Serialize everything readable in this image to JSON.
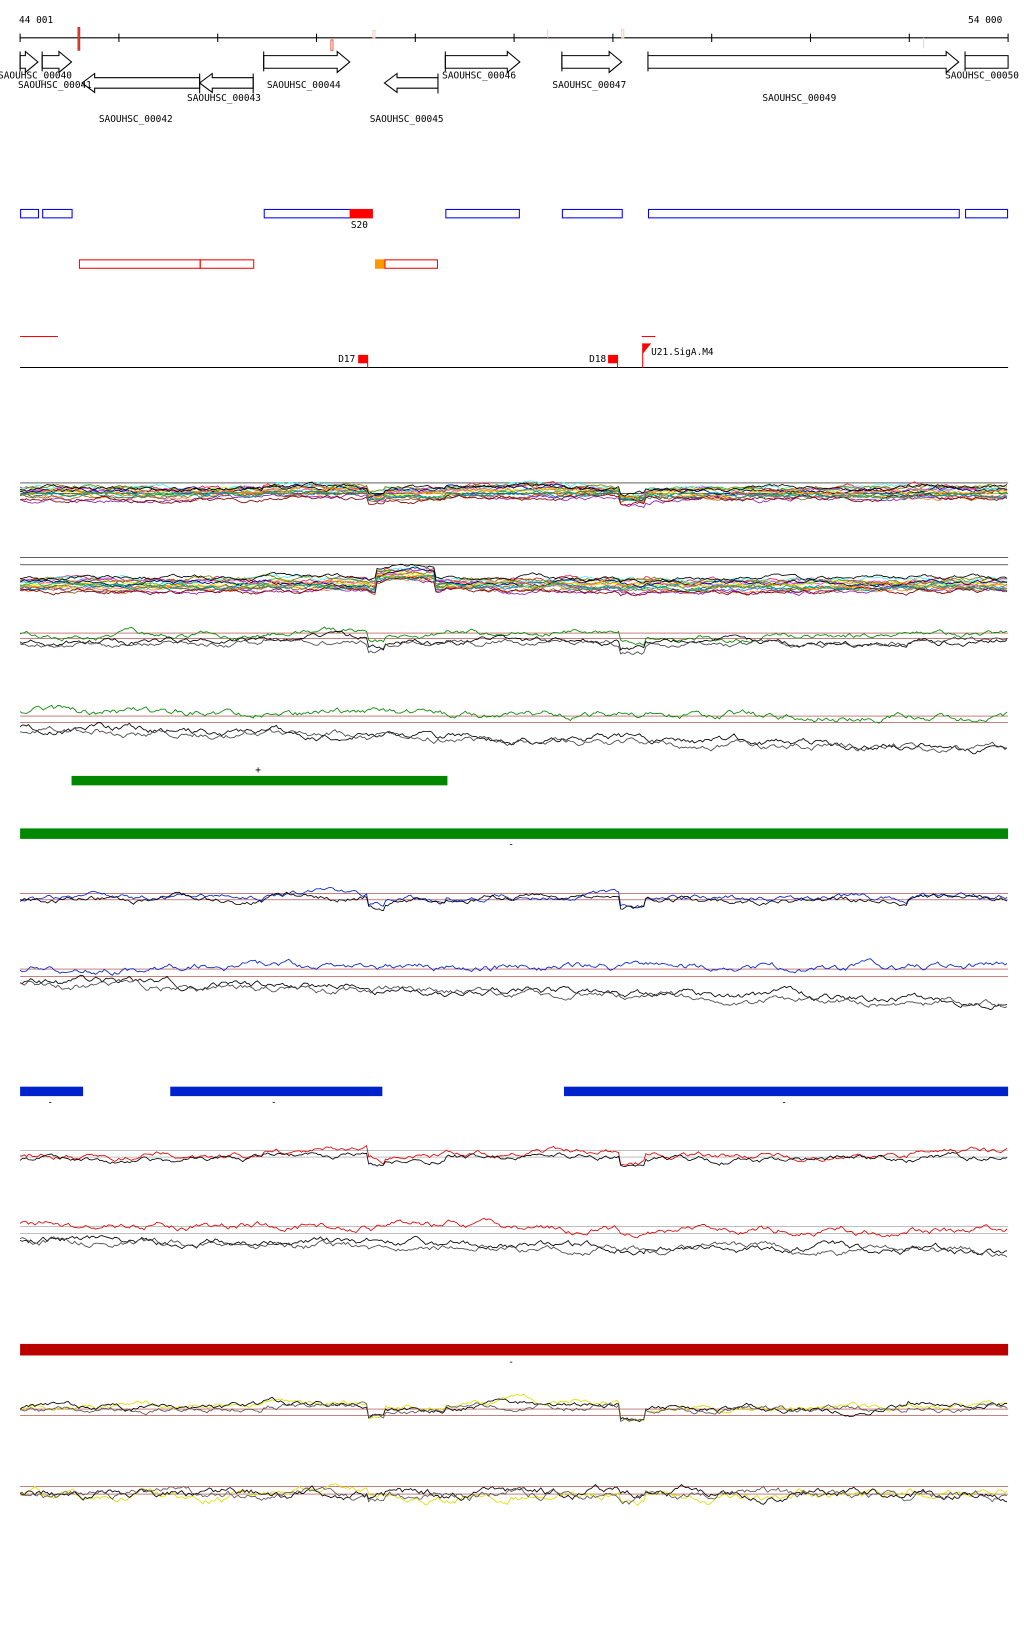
{
  "ruler": {
    "start_label": "44 001",
    "end_label": "54 000"
  },
  "genes": [
    {
      "name": "SAOUHSC_00040",
      "strand": "+"
    },
    {
      "name": "SAOUHSC_00041",
      "strand": "+"
    },
    {
      "name": "SAOUHSC_00042",
      "strand": "-"
    },
    {
      "name": "SAOUHSC_00043",
      "strand": "-"
    },
    {
      "name": "SAOUHSC_00044",
      "strand": "+"
    },
    {
      "name": "SAOUHSC_00045",
      "strand": "-"
    },
    {
      "name": "SAOUHSC_00046",
      "strand": "+"
    },
    {
      "name": "SAOUHSC_00047",
      "strand": "+"
    },
    {
      "name": "SAOUHSC_00049",
      "strand": "+"
    },
    {
      "name": "SAOUHSC_00050",
      "strand": "+"
    }
  ],
  "features": {
    "s_label": "S20",
    "d17_label": "D17",
    "d18_label": "D18",
    "promoter_label": "U21.SigA.M4"
  },
  "segments": {
    "plus_green": "+",
    "minus_green": "-",
    "minus_blue_1": "-",
    "minus_blue_2": "-",
    "minus_blue_3": "-",
    "minus_red": "-"
  },
  "colors": {
    "forward_box": "#0000ff",
    "reverse_box": "#ff0000",
    "green": "#008800",
    "blue": "#0022cc",
    "darkred": "#bb0000",
    "yellow": "#dddd00",
    "orange": "#ff9900"
  }
}
